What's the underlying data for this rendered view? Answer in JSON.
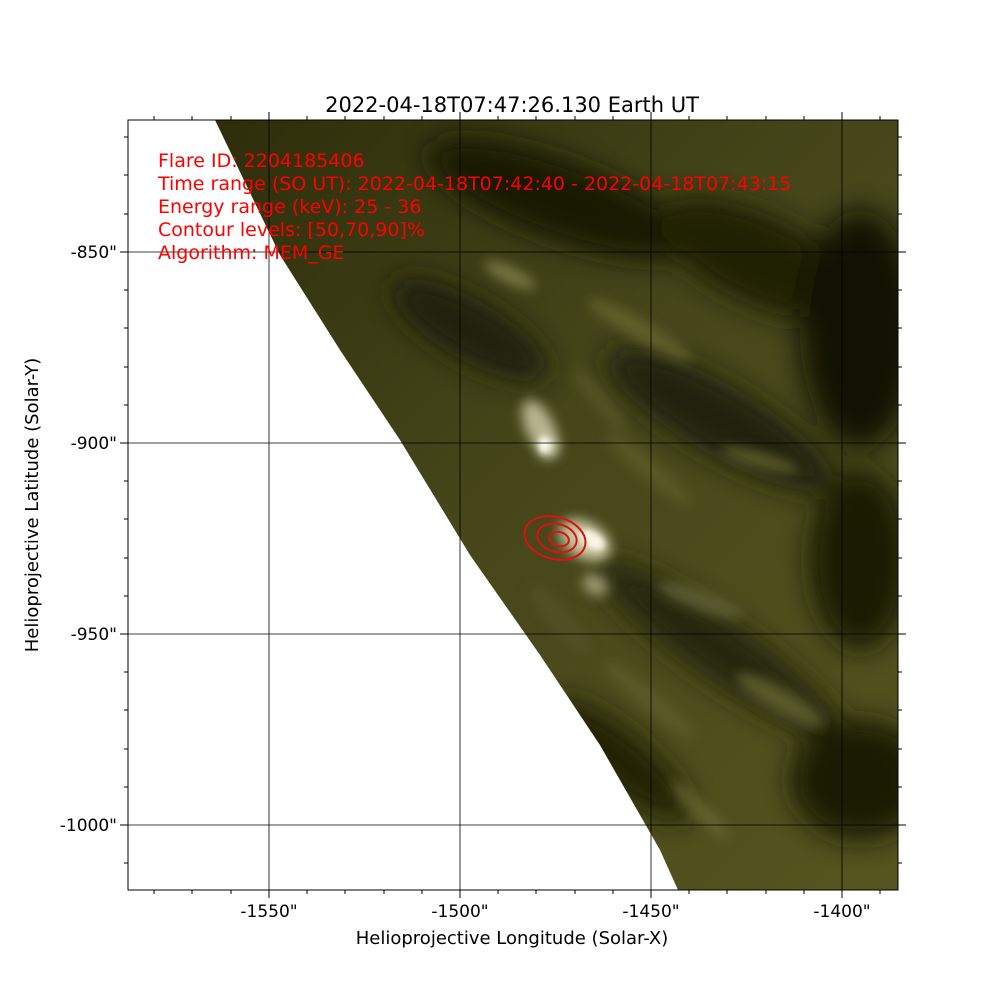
{
  "figure": {
    "title": "2022-04-18T07:47:26.130   Earth UT",
    "xlabel": "Helioprojective Longitude (Solar-X)",
    "ylabel": "Helioprojective Latitude (Solar-Y)",
    "x_ticks": [
      "-1550\"",
      "-1500\"",
      "-1450\"",
      "-1400\""
    ],
    "y_ticks": [
      "-850\"",
      "-900\"",
      "-950\"",
      "-1000\""
    ],
    "annotations": [
      "Flare ID: 2204185406",
      "Time range (SO UT): 2022-04-18T07:42:40 - 2022-04-18T07:43:15",
      "Energy range (keV): 25 - 36",
      "Contour levels: [50,70,90]%",
      "Algorithm: MEM_GE"
    ],
    "colors": {
      "annotation": "#ff0000",
      "contour": "#e01010",
      "sun_base": "#3a3a0e",
      "sun_bright": "#f4f2d8",
      "grid": "#000000"
    }
  }
}
